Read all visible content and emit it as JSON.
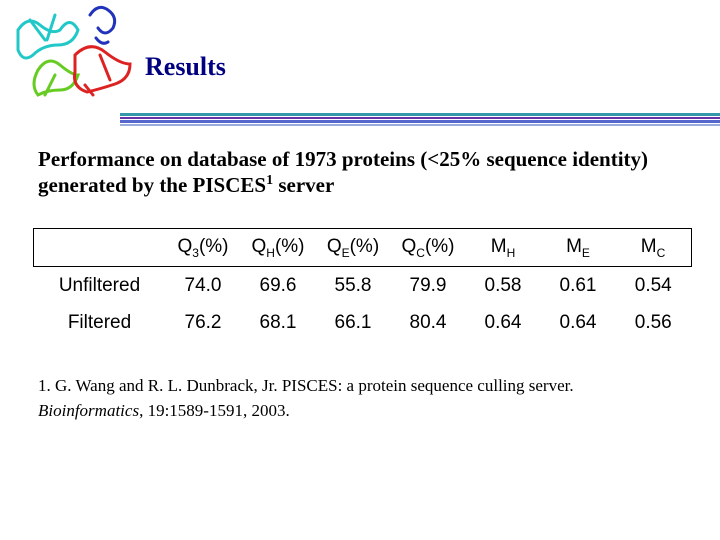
{
  "header": {
    "title": "Results"
  },
  "intro": {
    "text": "Performance on database of 1973 proteins (<25% sequence identity) generated by the PISCES",
    "superscript": "1",
    "tail": " server"
  },
  "table": {
    "columns": [
      {
        "main": "Q",
        "sub": "3",
        "tail": "(%)"
      },
      {
        "main": "Q",
        "sub": "H",
        "tail": "(%)"
      },
      {
        "main": "Q",
        "sub": "E",
        "tail": "(%)"
      },
      {
        "main": "Q",
        "sub": "C",
        "tail": "(%)"
      },
      {
        "main": "M",
        "sub": "H"
      },
      {
        "main": "M",
        "sub": "E"
      },
      {
        "main": "M",
        "sub": "C"
      }
    ],
    "rows": [
      [
        "Unfiltered",
        "74.0",
        "69.6",
        "55.8",
        "79.9",
        "0.58",
        "0.61",
        "0.54"
      ],
      [
        "Filtered",
        "76.2",
        "68.1",
        "66.1",
        "80.4",
        "0.64",
        "0.64",
        "0.56"
      ]
    ]
  },
  "reference": {
    "text": "1. G. Wang and R. L. Dunbrack, Jr. PISCES: a protein sequence culling server.",
    "journal": "Bioinformatics",
    "details": ", 19:1589-1591, 2003."
  }
}
